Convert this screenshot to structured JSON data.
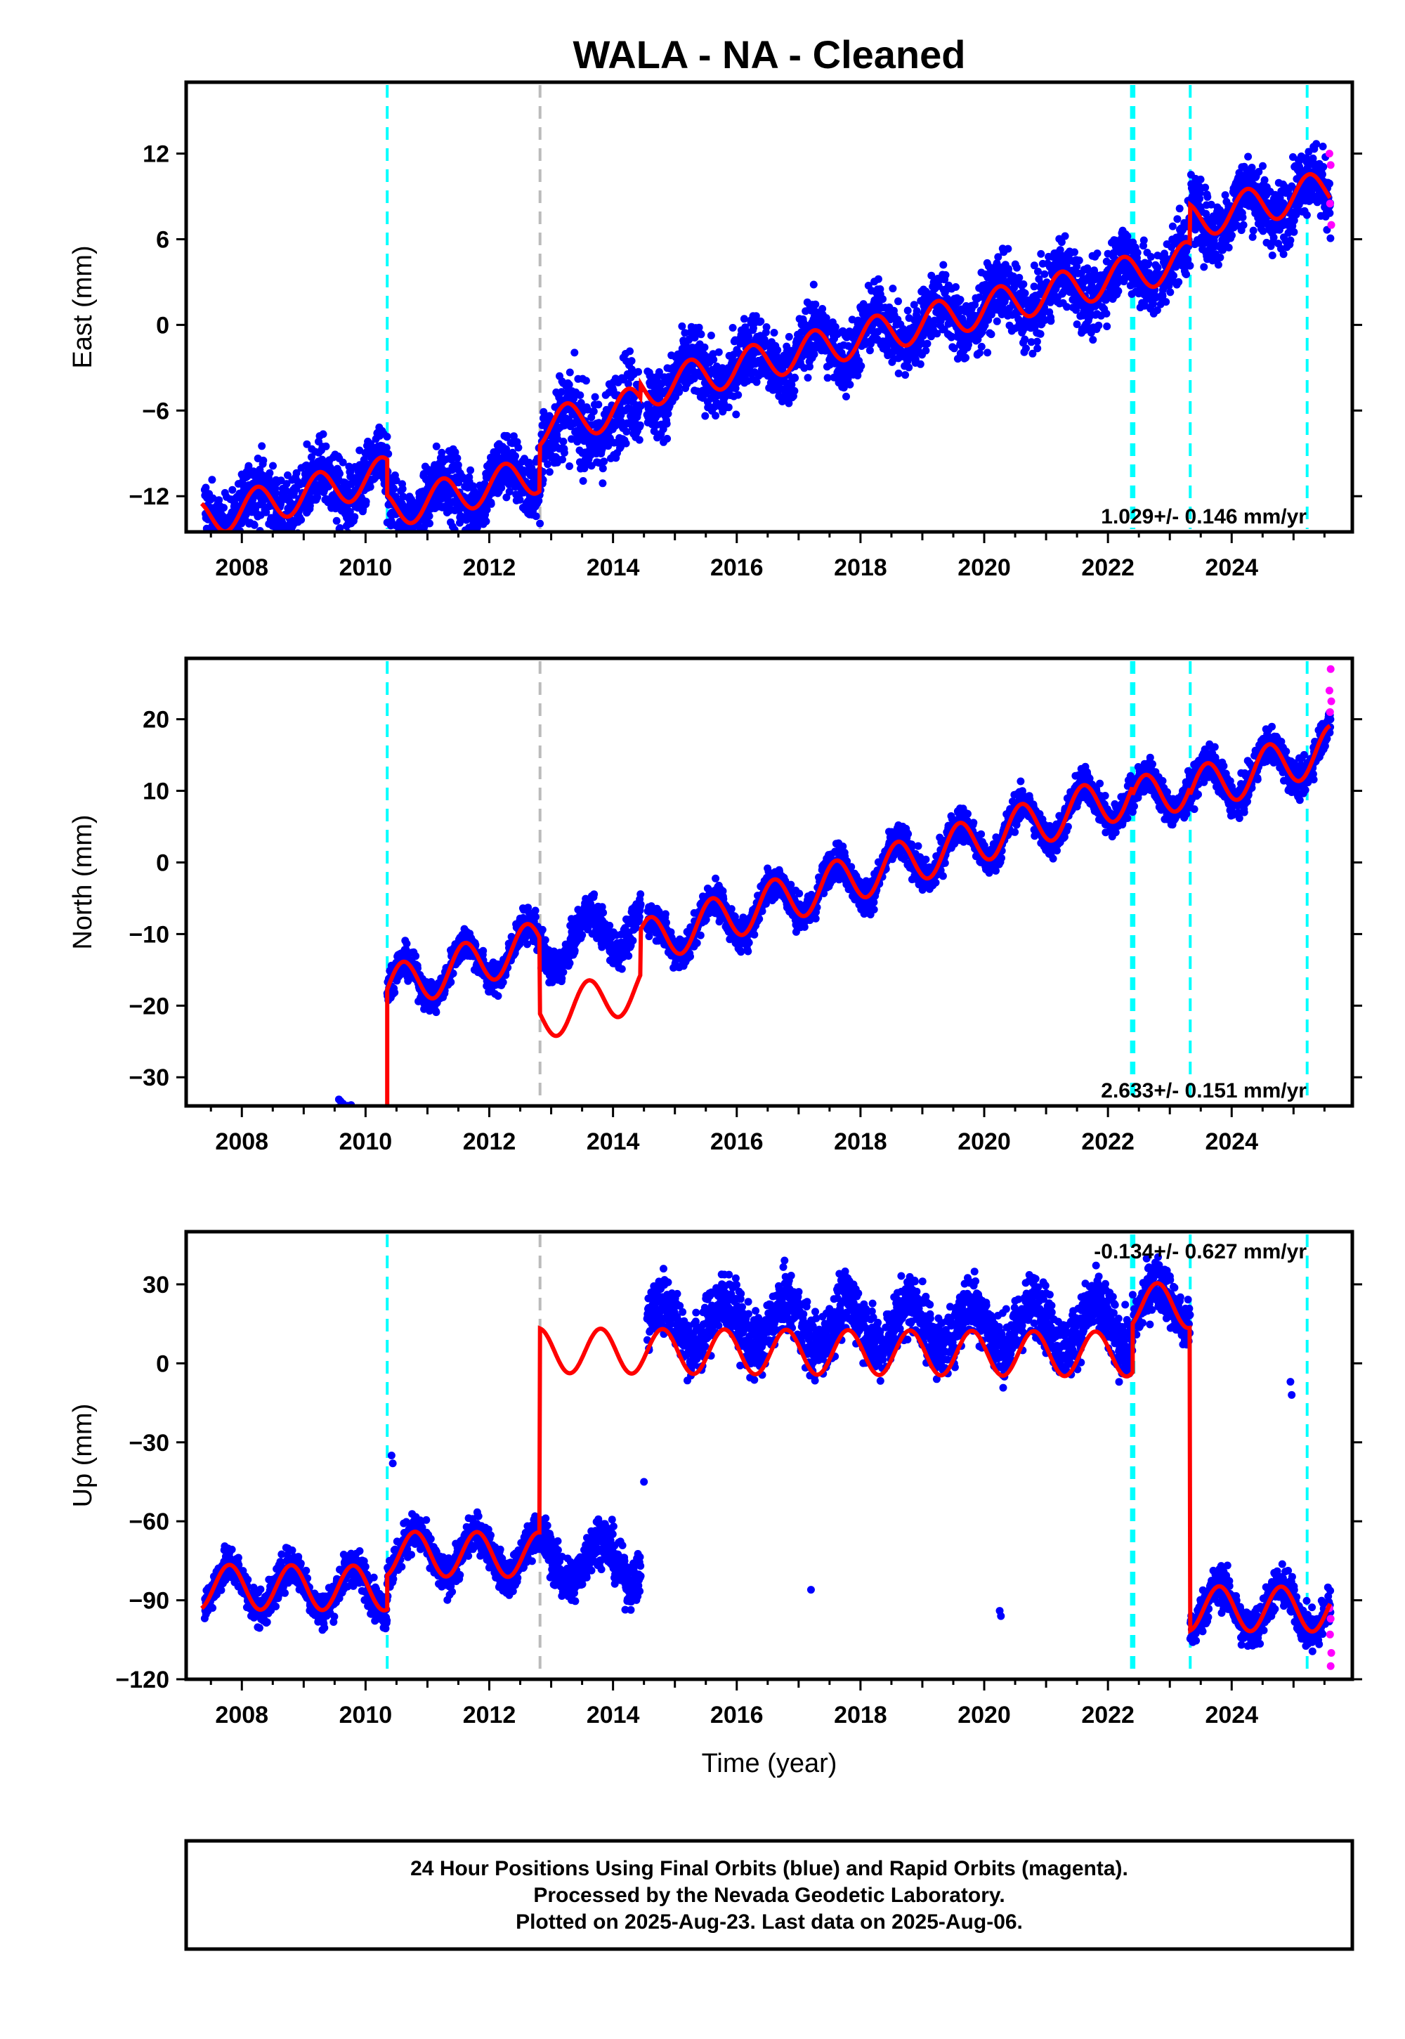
{
  "title": "WALA  - NA - Cleaned",
  "xlabel": "Time (year)",
  "footer": {
    "line1": "24 Hour Positions Using Final Orbits (blue) and Rapid Orbits (magenta).",
    "line2": "Processed by the Nevada Geodetic Laboratory.",
    "line3": "Plotted on 2025-Aug-23. Last data on 2025-Aug-06."
  },
  "colors": {
    "final": "#0000ff",
    "rapid": "#ff00ff",
    "model": "#ff0000",
    "equipment": "#00ffff",
    "other": "#bbbbbb"
  },
  "chart_data": [
    {
      "type": "scatter",
      "name": "east",
      "ylabel": "East (mm)",
      "rate_text": "1.029+/- 0.146 mm/yr",
      "xlim": [
        2007.1,
        2025.95
      ],
      "ylim": [
        -14.5,
        17
      ],
      "xticks": [
        2008,
        2010,
        2012,
        2014,
        2016,
        2018,
        2020,
        2022,
        2024
      ],
      "yticks": [
        -12,
        -6,
        0,
        6,
        12
      ],
      "vlines": [
        {
          "x": 2010.35,
          "kind": "equipment"
        },
        {
          "x": 2012.82,
          "kind": "other"
        },
        {
          "x": 2022.38,
          "kind": "equipment"
        },
        {
          "x": 2022.42,
          "kind": "equipment"
        },
        {
          "x": 2023.33,
          "kind": "equipment"
        },
        {
          "x": 2025.22,
          "kind": "equipment"
        }
      ],
      "model": {
        "rate": 1.029,
        "annual_amp": 1.3,
        "phase": 0.0,
        "segments": [
          {
            "start": 2007.35,
            "end": 2010.35,
            "offset": -5.7
          },
          {
            "start": 2010.35,
            "end": 2012.82,
            "offset": -8.2
          },
          {
            "start": 2012.82,
            "end": 2014.45,
            "offset": -5.0
          },
          {
            "start": 2014.45,
            "end": 2022.4,
            "offset": -4.0
          },
          {
            "start": 2022.4,
            "end": 2023.33,
            "offset": -4.0
          },
          {
            "start": 2023.33,
            "end": 2025.6,
            "offset": -1.3
          }
        ]
      },
      "data_segments": [
        {
          "start": 2007.4,
          "end": 2010.35,
          "offset": -5.7,
          "scatter": 1.2
        },
        {
          "start": 2010.35,
          "end": 2012.82,
          "offset": -8.2,
          "scatter": 1.2
        },
        {
          "start": 2012.82,
          "end": 2014.45,
          "offset": -5.5,
          "scatter": 1.5
        },
        {
          "start": 2014.55,
          "end": 2022.4,
          "offset": -4.0,
          "scatter": 1.2
        },
        {
          "start": 2022.4,
          "end": 2023.33,
          "offset": -4.0,
          "scatter": 1.2
        },
        {
          "start": 2023.33,
          "end": 2025.6,
          "offset": -1.3,
          "scatter": 1.2
        }
      ],
      "rapid_points": [
        [
          2025.58,
          12.0
        ],
        [
          2025.6,
          11.2
        ],
        [
          2025.59,
          8.5
        ],
        [
          2025.61,
          7.0
        ]
      ]
    },
    {
      "type": "scatter",
      "name": "north",
      "ylabel": "North (mm)",
      "rate_text": "2.633+/- 0.151 mm/yr",
      "xlim": [
        2007.1,
        2025.95
      ],
      "ylim": [
        -34,
        28.5
      ],
      "xticks": [
        2008,
        2010,
        2012,
        2014,
        2016,
        2018,
        2020,
        2022,
        2024
      ],
      "yticks": [
        -30,
        -20,
        -10,
        0,
        10,
        20
      ],
      "vlines": [
        {
          "x": 2010.35,
          "kind": "equipment"
        },
        {
          "x": 2012.82,
          "kind": "other"
        },
        {
          "x": 2022.38,
          "kind": "equipment"
        },
        {
          "x": 2022.42,
          "kind": "equipment"
        },
        {
          "x": 2023.33,
          "kind": "equipment"
        },
        {
          "x": 2025.22,
          "kind": "equipment"
        }
      ],
      "model": {
        "rate": 2.633,
        "annual_amp": 3.2,
        "phase": 0.35,
        "segments": [
          {
            "start": 2007.35,
            "end": 2010.35,
            "offset": -24.2
          },
          {
            "start": 2010.35,
            "end": 2012.82,
            "offset": -5.5
          },
          {
            "start": 2012.82,
            "end": 2014.45,
            "offset": -16.0
          },
          {
            "start": 2014.45,
            "end": 2022.4,
            "offset": -9.8
          },
          {
            "start": 2022.4,
            "end": 2023.33,
            "offset": -11.0
          },
          {
            "start": 2023.33,
            "end": 2025.6,
            "offset": -12.0
          }
        ]
      },
      "data_segments": [
        {
          "start": 2007.4,
          "end": 2010.35,
          "offset": -24.2,
          "scatter": 1.1
        },
        {
          "start": 2010.35,
          "end": 2012.82,
          "offset": -5.5,
          "scatter": 1.1
        },
        {
          "start": 2012.82,
          "end": 2014.45,
          "offset": -6.5,
          "scatter": 1.3
        },
        {
          "start": 2014.55,
          "end": 2022.4,
          "offset": -9.8,
          "scatter": 1.2
        },
        {
          "start": 2022.4,
          "end": 2023.33,
          "offset": -11.0,
          "scatter": 1.2
        },
        {
          "start": 2023.33,
          "end": 2025.6,
          "offset": -12.0,
          "scatter": 1.2
        }
      ],
      "rapid_points": [
        [
          2025.6,
          27.0
        ],
        [
          2025.58,
          24.0
        ],
        [
          2025.61,
          22.5
        ],
        [
          2025.59,
          21.0
        ]
      ]
    },
    {
      "type": "scatter",
      "name": "up",
      "ylabel": "Up (mm)",
      "rate_text": "-0.134+/- 0.627 mm/yr",
      "xlim": [
        2007.1,
        2025.95
      ],
      "ylim": [
        -120,
        50
      ],
      "xticks": [
        2008,
        2010,
        2012,
        2014,
        2016,
        2018,
        2020,
        2022,
        2024
      ],
      "yticks": [
        -120,
        -90,
        -60,
        -30,
        0,
        30
      ],
      "vlines": [
        {
          "x": 2010.35,
          "kind": "equipment"
        },
        {
          "x": 2012.82,
          "kind": "other"
        },
        {
          "x": 2022.38,
          "kind": "equipment"
        },
        {
          "x": 2022.42,
          "kind": "equipment"
        },
        {
          "x": 2023.33,
          "kind": "equipment"
        },
        {
          "x": 2025.22,
          "kind": "equipment"
        }
      ],
      "model": {
        "rate": -0.134,
        "annual_amp": 8.5,
        "phase": 0.55,
        "segments": [
          {
            "start": 2007.35,
            "end": 2010.35,
            "offset": -86.0
          },
          {
            "start": 2010.35,
            "end": 2012.82,
            "offset": -73.0
          },
          {
            "start": 2012.82,
            "end": 2022.4,
            "offset": 4.5
          },
          {
            "start": 2022.4,
            "end": 2023.33,
            "offset": 23.0
          },
          {
            "start": 2023.33,
            "end": 2025.6,
            "offset": -92.0
          }
        ]
      },
      "data_segments": [
        {
          "start": 2007.4,
          "end": 2010.35,
          "offset": -86.0,
          "scatter": 3.5
        },
        {
          "start": 2010.35,
          "end": 2012.82,
          "offset": -73.0,
          "scatter": 3.5
        },
        {
          "start": 2012.82,
          "end": 2014.45,
          "offset": -75.0,
          "scatter": 4.5
        },
        {
          "start": 2014.55,
          "end": 2022.4,
          "offset": 15.0,
          "scatter": 6.0
        },
        {
          "start": 2022.4,
          "end": 2023.33,
          "offset": 23.0,
          "scatter": 5.0
        },
        {
          "start": 2023.33,
          "end": 2025.6,
          "offset": -92.0,
          "scatter": 4.0
        }
      ],
      "outliers": [
        [
          2010.42,
          -35
        ],
        [
          2010.44,
          -38
        ],
        [
          2014.5,
          -45
        ],
        [
          2017.2,
          -86
        ],
        [
          2020.25,
          -94
        ],
        [
          2020.27,
          -96
        ],
        [
          2024.95,
          -7
        ],
        [
          2024.97,
          -12
        ]
      ],
      "rapid_points": [
        [
          2025.58,
          -93
        ],
        [
          2025.6,
          -97
        ],
        [
          2025.59,
          -103
        ],
        [
          2025.61,
          -110
        ],
        [
          2025.6,
          -115
        ]
      ]
    }
  ]
}
